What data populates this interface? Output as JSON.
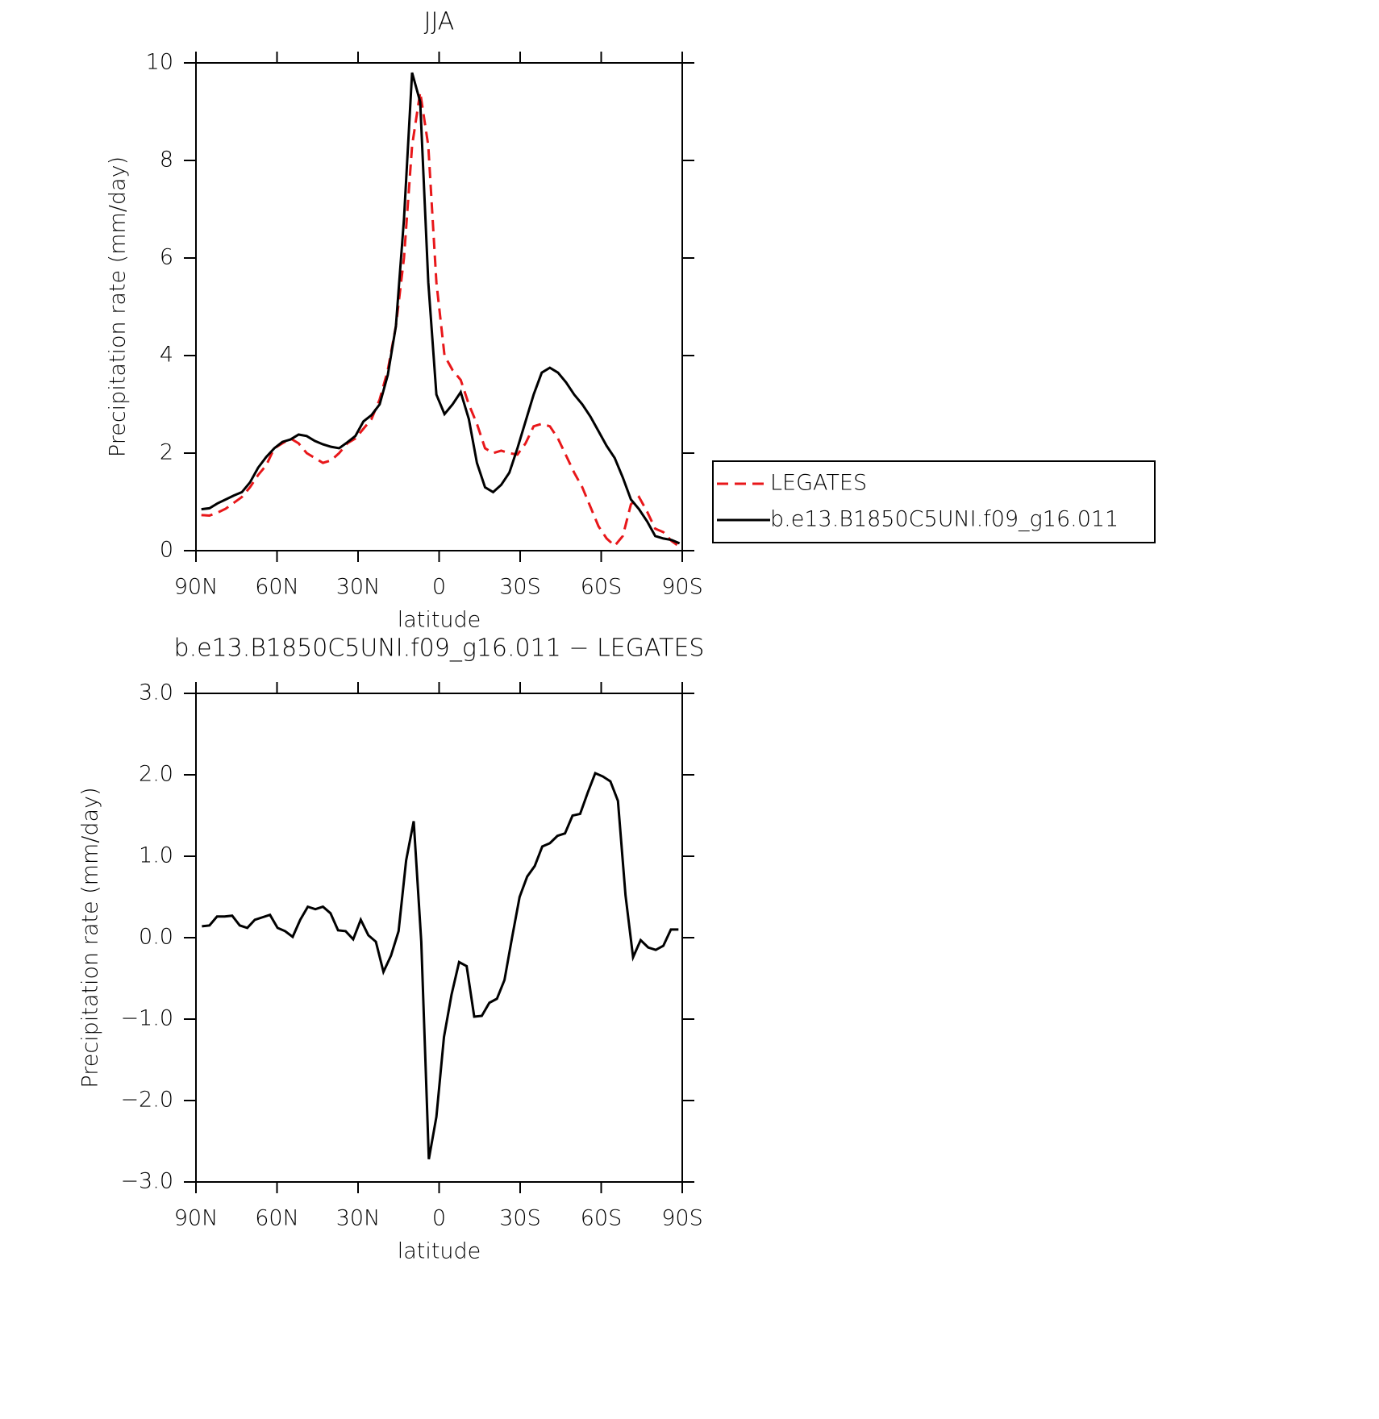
{
  "chart_data": [
    {
      "type": "line",
      "title": "JJA",
      "xlabel": "latitude",
      "ylabel": "Precipitation rate (mm/day)",
      "xlim": [
        90,
        -90
      ],
      "ylim": [
        0,
        10
      ],
      "xticks": [
        {
          "value": 90,
          "label": "90N"
        },
        {
          "value": 60,
          "label": "60N"
        },
        {
          "value": 30,
          "label": "30N"
        },
        0,
        {
          "value": -30,
          "label": "30S"
        },
        {
          "value": -60,
          "label": "60S"
        },
        {
          "value": -90,
          "label": "90S"
        }
      ],
      "yticks": [
        0,
        2,
        4,
        6,
        8,
        10
      ],
      "legend": "right",
      "x": [
        88,
        85,
        82,
        79,
        76,
        73,
        70,
        67,
        64,
        61,
        58,
        55,
        52,
        49,
        46,
        43,
        40,
        37,
        34,
        31,
        28,
        25,
        22,
        19,
        16,
        13,
        10,
        7,
        4,
        1,
        -2,
        -5,
        -8,
        -11,
        -14,
        -17,
        -20,
        -23,
        -26,
        -29,
        -32,
        -35,
        -38,
        -41,
        -44,
        -47,
        -50,
        -53,
        -56,
        -59,
        -62,
        -65,
        -68,
        -71,
        -74,
        -77,
        -80,
        -83,
        -86,
        -89
      ],
      "series": [
        {
          "name": "LEGATES",
          "color": "#e8171a",
          "linestyle": "dashed",
          "values": [
            0.73,
            0.72,
            0.78,
            0.86,
            0.98,
            1.1,
            1.3,
            1.55,
            1.75,
            2.1,
            2.2,
            2.3,
            2.2,
            2.0,
            1.9,
            1.8,
            1.85,
            2.0,
            2.2,
            2.3,
            2.5,
            2.7,
            3.1,
            3.7,
            4.6,
            6.0,
            8.3,
            9.4,
            8.3,
            5.5,
            4.0,
            3.7,
            3.5,
            3.0,
            2.6,
            2.1,
            2.0,
            2.05,
            2.0,
            1.97,
            2.2,
            2.55,
            2.6,
            2.55,
            2.3,
            1.95,
            1.6,
            1.3,
            0.9,
            0.5,
            0.25,
            0.1,
            0.3,
            0.95,
            1.1,
            0.8,
            0.45,
            0.38,
            0.2,
            0.08
          ]
        },
        {
          "name": "b.e13.B1850C5UNI.f09_g16.011",
          "color": "#000000",
          "linestyle": "solid",
          "values": [
            0.85,
            0.87,
            0.97,
            1.05,
            1.13,
            1.2,
            1.4,
            1.7,
            1.92,
            2.1,
            2.23,
            2.28,
            2.38,
            2.35,
            2.25,
            2.18,
            2.13,
            2.1,
            2.22,
            2.35,
            2.65,
            2.78,
            3.0,
            3.6,
            4.6,
            6.8,
            9.8,
            9.2,
            5.5,
            3.2,
            2.8,
            3.0,
            3.25,
            2.7,
            1.8,
            1.3,
            1.2,
            1.35,
            1.6,
            2.1,
            2.65,
            3.2,
            3.65,
            3.75,
            3.65,
            3.45,
            3.2,
            3.0,
            2.75,
            2.45,
            2.15,
            1.9,
            1.5,
            1.05,
            0.85,
            0.6,
            0.3,
            0.25,
            0.22,
            0.15
          ]
        }
      ]
    },
    {
      "type": "line",
      "title": "b.e13.B1850C5UNI.f09_g16.011 − LEGATES",
      "xlabel": "latitude",
      "ylabel": "Precipitation rate (mm/day)",
      "xlim": [
        90,
        -90
      ],
      "ylim": [
        -3,
        3
      ],
      "xticks": [
        {
          "value": 90,
          "label": "90N"
        },
        {
          "value": 60,
          "label": "60N"
        },
        {
          "value": 30,
          "label": "30N"
        },
        0,
        {
          "value": -30,
          "label": "30S"
        },
        {
          "value": -60,
          "label": "60S"
        },
        {
          "value": -90,
          "label": "90S"
        }
      ],
      "yticks": [
        {
          "value": -3,
          "label": "−3.0"
        },
        {
          "value": -2,
          "label": "−2.0"
        },
        {
          "value": -1,
          "label": "−1.0"
        },
        {
          "value": 0,
          "label": "0.0"
        },
        {
          "value": 1,
          "label": "1.0"
        },
        {
          "value": 2,
          "label": "2.0"
        },
        {
          "value": 3,
          "label": "3.0"
        }
      ],
      "color": "#000000",
      "x": [
        87.8,
        85,
        82.2,
        79.4,
        76.6,
        73.8,
        71,
        68.2,
        65.4,
        62.6,
        59.8,
        57,
        54.2,
        51.4,
        48.6,
        45.8,
        43,
        40.2,
        37.4,
        34.6,
        31.8,
        29,
        26.2,
        23.4,
        20.6,
        17.8,
        15,
        12.2,
        9.4,
        6.6,
        3.8,
        1,
        -1.8,
        -4.6,
        -7.4,
        -10.2,
        -13,
        -15.8,
        -18.6,
        -21.4,
        -24.2,
        -27,
        -29.8,
        -32.6,
        -35.4,
        -38.2,
        -41,
        -43.8,
        -46.6,
        -49.4,
        -52.2,
        -55,
        -57.8,
        -60.6,
        -63.4,
        -66.2,
        -69,
        -71.8,
        -74.6,
        -77.4,
        -80.2,
        -83,
        -85.8,
        -88.6
      ],
      "values": [
        0.14,
        0.15,
        0.26,
        0.26,
        0.27,
        0.15,
        0.12,
        0.22,
        0.25,
        0.28,
        0.12,
        0.08,
        0.01,
        0.22,
        0.38,
        0.35,
        0.38,
        0.3,
        0.09,
        0.08,
        -0.02,
        0.22,
        0.03,
        -0.05,
        -0.42,
        -0.22,
        0.08,
        0.95,
        1.43,
        -0.05,
        -2.72,
        -2.2,
        -1.22,
        -0.7,
        -0.3,
        -0.35,
        -0.97,
        -0.96,
        -0.8,
        -0.75,
        -0.52,
        0.0,
        0.5,
        0.75,
        0.88,
        1.12,
        1.16,
        1.25,
        1.28,
        1.5,
        1.52,
        1.78,
        2.02,
        1.98,
        1.92,
        1.68,
        0.52,
        -0.24,
        -0.03,
        -0.12,
        -0.15,
        -0.1,
        0.1,
        0.1
      ]
    }
  ]
}
